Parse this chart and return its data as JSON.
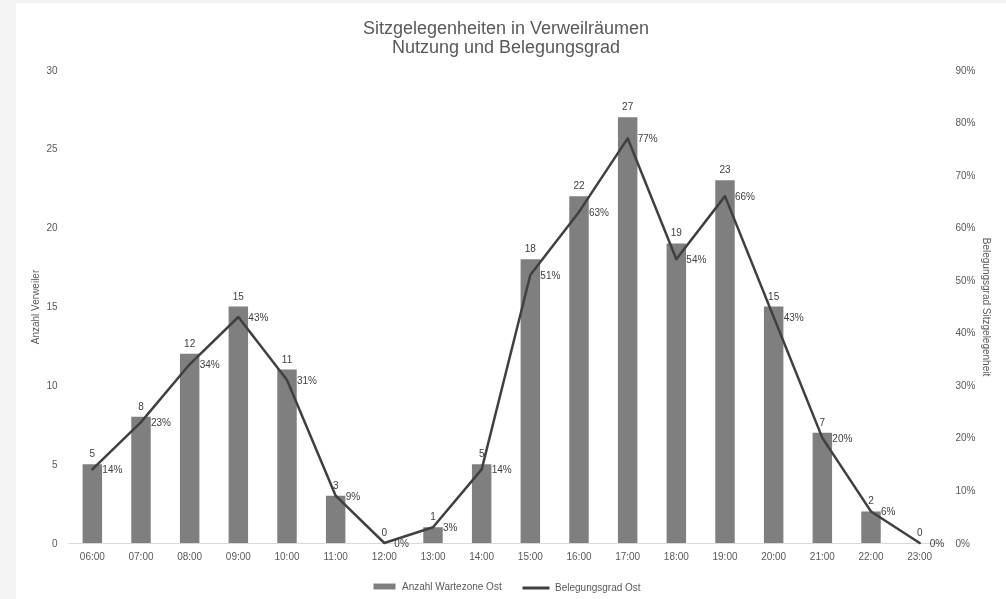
{
  "chart_data": {
    "type": "bar",
    "title": "Sitzgelegenheiten in Verweilräumen",
    "subtitle": "Nutzung und Belegungsgrad",
    "ylabel": "Anzahl Verweiler",
    "y2label": "Belegungsgrad Sitzgelegenheit",
    "categories": [
      "06:00",
      "07:00",
      "08:00",
      "09:00",
      "10:00",
      "11:00",
      "12:00",
      "13:00",
      "14:00",
      "15:00",
      "16:00",
      "17:00",
      "18:00",
      "19:00",
      "20:00",
      "21:00",
      "22:00",
      "23:00"
    ],
    "series": [
      {
        "name": "Anzahl Wartezone Ost",
        "color": "#7f7f7f",
        "values": [
          5,
          8,
          12,
          15,
          11,
          3,
          0,
          1,
          5,
          18,
          22,
          27,
          19,
          23,
          15,
          7,
          2,
          0
        ],
        "value_labels": [
          "5",
          "8",
          "12",
          "15",
          "11",
          "3",
          "0",
          "1",
          "5",
          "18",
          "22",
          "27",
          "19",
          "23",
          "15",
          "7",
          "2",
          "0"
        ]
      },
      {
        "name": "Belegungsgrad Ost",
        "type": "line",
        "axis": "y2",
        "color": "#404040",
        "values": [
          14,
          23,
          34,
          43,
          31,
          9,
          0,
          3,
          14,
          51,
          63,
          77,
          54,
          66,
          43,
          20,
          6,
          0
        ],
        "value_labels": [
          "14%",
          "23%",
          "34%",
          "43%",
          "31%",
          "9%",
          "0%",
          "3%",
          "14%",
          "51%",
          "63%",
          "77%",
          "54%",
          "66%",
          "43%",
          "20%",
          "6%",
          "0%"
        ]
      }
    ],
    "ylim": [
      0,
      30
    ],
    "yticks": [
      0,
      5,
      10,
      15,
      20,
      25,
      30
    ],
    "y2lim": [
      0,
      90
    ],
    "y2ticks": [
      {
        "value": 0,
        "label": "0%"
      },
      {
        "value": 10,
        "label": "10%"
      },
      {
        "value": 20,
        "label": "20%"
      },
      {
        "value": 30,
        "label": "30%"
      },
      {
        "value": 40,
        "label": "40%"
      },
      {
        "value": 50,
        "label": "50%"
      },
      {
        "value": 60,
        "label": "60%"
      },
      {
        "value": 70,
        "label": "70%"
      },
      {
        "value": 80,
        "label": "80%"
      },
      {
        "value": 90,
        "label": "90%"
      }
    ],
    "legend": "bottom",
    "grid": false,
    "marker": "none",
    "line_style": "solid"
  }
}
